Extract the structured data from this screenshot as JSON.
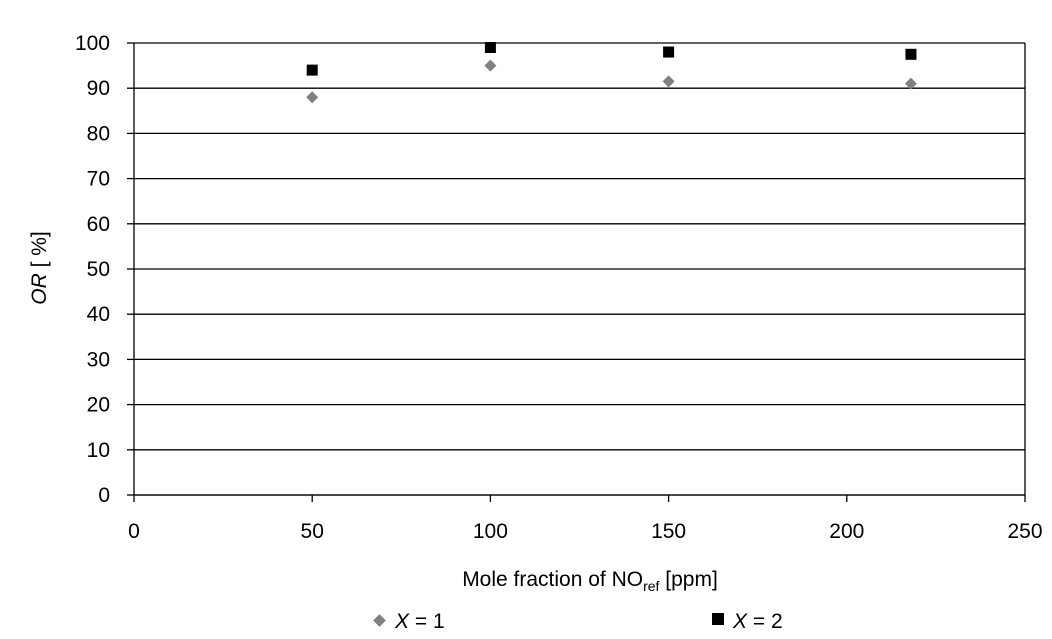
{
  "chart_data": {
    "type": "scatter",
    "xlabel_parts": {
      "main": "Mole fraction of NO",
      "sub": "ref",
      "tail": " [ppm]"
    },
    "ylabel_parts": {
      "italic": "OR",
      "tail": " [ %]"
    },
    "xlim": [
      0,
      250
    ],
    "ylim": [
      0,
      100
    ],
    "x_ticks": [
      "0",
      "50",
      "100",
      "150",
      "200",
      "250"
    ],
    "y_ticks": [
      "0",
      "10",
      "20",
      "30",
      "40",
      "50",
      "60",
      "70",
      "80",
      "90",
      "100"
    ],
    "grid": "horizontal",
    "legend_position": "bottom",
    "series": [
      {
        "name": "X = 1",
        "name_var": "X",
        "name_rest": " = 1",
        "marker": "diamond",
        "color": "#808080",
        "x": [
          50,
          100,
          150,
          218
        ],
        "y": [
          88,
          95,
          91.5,
          91
        ]
      },
      {
        "name": "X = 2",
        "name_var": "X",
        "name_rest": " = 2",
        "marker": "square",
        "color": "#000000",
        "x": [
          50,
          100,
          150,
          218
        ],
        "y": [
          94,
          99,
          98,
          97.5
        ]
      }
    ]
  }
}
